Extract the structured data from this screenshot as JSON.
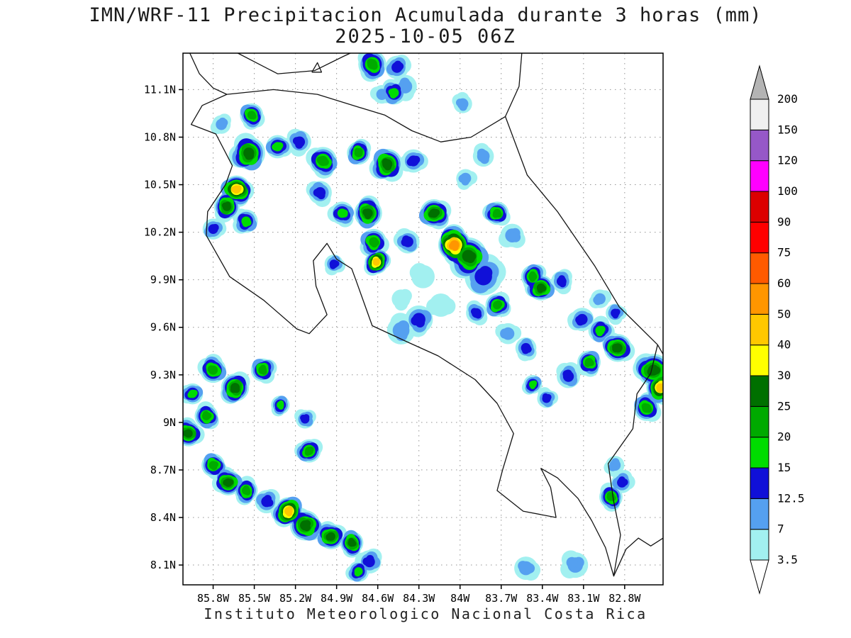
{
  "title": {
    "line1": "IMN/WRF-11 Precipitacion Acumulada durante 3 horas (mm)",
    "line2": "2025-10-05 06Z"
  },
  "footer": {
    "text": "Instituto Meteorologico Nacional Costa Rica"
  },
  "colorbar": {
    "levels": [
      3.5,
      7,
      12.5,
      15,
      20,
      25,
      30,
      40,
      50,
      60,
      75,
      90,
      100,
      120,
      150,
      200
    ],
    "labels": [
      "3.5",
      "7",
      "12.5",
      "15",
      "20",
      "25",
      "30",
      "40",
      "50",
      "60",
      "75",
      "90",
      "100",
      "120",
      "150",
      "200"
    ],
    "band_colors": [
      "#ffffff",
      "#a2f0f0",
      "#55a0f0",
      "#1010d8",
      "#00dc00",
      "#00aa00",
      "#007000",
      "#ffff00",
      "#ffc800",
      "#ff9600",
      "#ff5a00",
      "#ff0000",
      "#dc0000",
      "#ff00ff",
      "#9658c8",
      "#f0f0f0",
      "#b4b4b4"
    ]
  },
  "axes": {
    "lat_ticks": [
      {
        "value": 11.1,
        "label": "11.1N"
      },
      {
        "value": 10.8,
        "label": "10.8N"
      },
      {
        "value": 10.5,
        "label": "10.5N"
      },
      {
        "value": 10.2,
        "label": "10.2N"
      },
      {
        "value": 9.9,
        "label": "9.9N"
      },
      {
        "value": 9.6,
        "label": "9.6N"
      },
      {
        "value": 9.3,
        "label": "9.3N"
      },
      {
        "value": 9.0,
        "label": "9N"
      },
      {
        "value": 8.7,
        "label": "8.7N"
      },
      {
        "value": 8.4,
        "label": "8.4N"
      },
      {
        "value": 8.1,
        "label": "8.1N"
      }
    ],
    "lon_ticks": [
      {
        "value": -85.8,
        "label": "85.8W"
      },
      {
        "value": -85.5,
        "label": "85.5W"
      },
      {
        "value": -85.2,
        "label": "85.2W"
      },
      {
        "value": -84.9,
        "label": "84.9W"
      },
      {
        "value": -84.6,
        "label": "84.6W"
      },
      {
        "value": -84.3,
        "label": "84.3W"
      },
      {
        "value": -84.0,
        "label": "84W"
      },
      {
        "value": -83.7,
        "label": "83.7W"
      },
      {
        "value": -83.4,
        "label": "83.4W"
      },
      {
        "value": -83.1,
        "label": "83.1W"
      },
      {
        "value": -82.8,
        "label": "82.8W"
      }
    ]
  },
  "chart_data": {
    "type": "filled-contour-map",
    "model": "IMN/WRF-11",
    "variable": "Precipitacion Acumulada durante 3 horas",
    "units": "mm",
    "valid_time": "2025-10-05 06Z",
    "lon_range": [
      -86.02,
      -82.52
    ],
    "lat_range": [
      7.975,
      11.33
    ],
    "contour_levels": [
      3.5,
      7,
      12.5,
      15,
      20,
      25,
      30,
      40,
      50,
      60,
      75,
      90,
      100,
      120,
      150,
      200
    ],
    "cells": [
      [
        -84.64,
        11.26,
        20,
        0.06
      ],
      [
        -84.46,
        11.24,
        12.5,
        0.05
      ],
      [
        -84.4,
        11.12,
        7,
        0.05
      ],
      [
        -84.57,
        11.07,
        7,
        0.04
      ],
      [
        -84.48,
        11.08,
        15,
        0.05
      ],
      [
        -85.52,
        10.94,
        20,
        0.05
      ],
      [
        -85.74,
        10.88,
        7,
        0.04
      ],
      [
        -85.54,
        10.7,
        25,
        0.07
      ],
      [
        -85.33,
        10.74,
        15,
        0.05
      ],
      [
        -85.17,
        10.77,
        12.5,
        0.05
      ],
      [
        -85.0,
        10.65,
        20,
        0.06
      ],
      [
        -84.74,
        10.7,
        20,
        0.05
      ],
      [
        -84.53,
        10.63,
        25,
        0.065
      ],
      [
        -84.34,
        10.65,
        12.5,
        0.05
      ],
      [
        -83.98,
        11.01,
        7,
        0.04
      ],
      [
        -85.63,
        10.47,
        40,
        0.06
      ],
      [
        -85.7,
        10.36,
        25,
        0.055
      ],
      [
        -85.56,
        10.27,
        15,
        0.05
      ],
      [
        -85.8,
        10.22,
        12.5,
        0.045
      ],
      [
        -85.02,
        10.45,
        12.5,
        0.05
      ],
      [
        -84.86,
        10.32,
        15,
        0.05
      ],
      [
        -84.67,
        10.32,
        25,
        0.06
      ],
      [
        -84.63,
        10.14,
        20,
        0.055
      ],
      [
        -84.61,
        10.01,
        40,
        0.05
      ],
      [
        -84.38,
        10.14,
        12.5,
        0.05
      ],
      [
        -84.19,
        10.32,
        25,
        0.06
      ],
      [
        -84.04,
        10.12,
        50,
        0.07
      ],
      [
        -83.94,
        10.05,
        25,
        0.08
      ],
      [
        -83.83,
        9.92,
        12.5,
        0.08
      ],
      [
        -83.73,
        10.32,
        20,
        0.05
      ],
      [
        -83.62,
        10.18,
        7,
        0.05
      ],
      [
        -83.83,
        10.68,
        7,
        0.045
      ],
      [
        -83.96,
        10.54,
        7,
        0.04
      ],
      [
        -83.47,
        9.92,
        20,
        0.05
      ],
      [
        -83.41,
        9.85,
        25,
        0.055
      ],
      [
        -83.73,
        9.74,
        20,
        0.05
      ],
      [
        -83.88,
        9.69,
        12.5,
        0.045
      ],
      [
        -84.3,
        9.65,
        12.5,
        0.06
      ],
      [
        -84.43,
        9.58,
        7,
        0.06
      ],
      [
        -84.14,
        9.74,
        3.5,
        0.05
      ],
      [
        -84.92,
        10.0,
        12.5,
        0.04
      ],
      [
        -84.27,
        9.92,
        3.5,
        0.05
      ],
      [
        -84.43,
        9.78,
        3.5,
        0.04
      ],
      [
        -83.26,
        9.89,
        12.5,
        0.045
      ],
      [
        -83.11,
        9.65,
        12.5,
        0.05
      ],
      [
        -82.98,
        9.58,
        15,
        0.05
      ],
      [
        -82.85,
        9.47,
        25,
        0.06
      ],
      [
        -83.06,
        9.38,
        20,
        0.05
      ],
      [
        -83.21,
        9.29,
        12.5,
        0.05
      ],
      [
        -82.98,
        9.78,
        7,
        0.04
      ],
      [
        -82.87,
        9.69,
        12.5,
        0.04
      ],
      [
        -82.59,
        9.33,
        25,
        0.07
      ],
      [
        -82.54,
        9.22,
        40,
        0.06
      ],
      [
        -82.64,
        9.09,
        20,
        0.055
      ],
      [
        -83.47,
        9.24,
        15,
        0.04
      ],
      [
        -83.37,
        9.15,
        12.5,
        0.04
      ],
      [
        -83.65,
        9.56,
        7,
        0.045
      ],
      [
        -83.52,
        9.47,
        12.5,
        0.045
      ],
      [
        -85.8,
        9.33,
        20,
        0.055
      ],
      [
        -85.64,
        9.22,
        25,
        0.06
      ],
      [
        -85.44,
        9.33,
        20,
        0.05
      ],
      [
        -85.95,
        9.18,
        15,
        0.045
      ],
      [
        -85.85,
        9.04,
        20,
        0.05
      ],
      [
        -85.98,
        8.93,
        25,
        0.055
      ],
      [
        -85.31,
        9.11,
        15,
        0.04
      ],
      [
        -85.13,
        9.02,
        12.5,
        0.04
      ],
      [
        -85.1,
        8.82,
        20,
        0.05
      ],
      [
        -85.8,
        8.73,
        20,
        0.05
      ],
      [
        -85.69,
        8.62,
        25,
        0.055
      ],
      [
        -85.56,
        8.57,
        20,
        0.05
      ],
      [
        -85.41,
        8.5,
        12.5,
        0.05
      ],
      [
        -85.25,
        8.44,
        40,
        0.06
      ],
      [
        -85.13,
        8.35,
        25,
        0.065
      ],
      [
        -84.94,
        8.28,
        25,
        0.055
      ],
      [
        -84.79,
        8.24,
        25,
        0.05
      ],
      [
        -84.66,
        8.12,
        12.5,
        0.05
      ],
      [
        -84.74,
        8.06,
        15,
        0.045
      ],
      [
        -83.52,
        8.08,
        7,
        0.05
      ],
      [
        -83.16,
        8.1,
        7,
        0.055
      ],
      [
        -82.9,
        8.53,
        20,
        0.05
      ],
      [
        -82.82,
        8.62,
        12.5,
        0.045
      ],
      [
        -82.87,
        8.73,
        7,
        0.04
      ]
    ],
    "coastlines": {
      "costa_rica": [
        [
          -85.7,
          11.07
        ],
        [
          -85.88,
          11.0
        ],
        [
          -85.96,
          10.88
        ],
        [
          -85.78,
          10.82
        ],
        [
          -85.66,
          10.62
        ],
        [
          -85.71,
          10.5
        ],
        [
          -85.84,
          10.33
        ],
        [
          -85.85,
          10.18
        ],
        [
          -85.68,
          9.92
        ],
        [
          -85.43,
          9.77
        ],
        [
          -85.19,
          9.59
        ],
        [
          -85.1,
          9.56
        ],
        [
          -84.97,
          9.68
        ],
        [
          -85.05,
          9.86
        ],
        [
          -85.07,
          10.02
        ],
        [
          -84.97,
          10.13
        ],
        [
          -84.9,
          10.03
        ],
        [
          -84.79,
          9.97
        ],
        [
          -84.76,
          9.9
        ],
        [
          -84.64,
          9.61
        ],
        [
          -84.39,
          9.51
        ],
        [
          -84.16,
          9.42
        ],
        [
          -83.89,
          9.27
        ],
        [
          -83.73,
          9.12
        ],
        [
          -83.61,
          8.93
        ],
        [
          -83.69,
          8.7
        ],
        [
          -83.73,
          8.57
        ],
        [
          -83.54,
          8.44
        ],
        [
          -83.3,
          8.4
        ],
        [
          -83.34,
          8.59
        ],
        [
          -83.41,
          8.71
        ],
        [
          -83.29,
          8.65
        ],
        [
          -83.14,
          8.52
        ],
        [
          -83.04,
          8.38
        ],
        [
          -82.94,
          8.21
        ],
        [
          -82.88,
          8.03
        ],
        [
          -82.83,
          8.29
        ],
        [
          -82.88,
          8.5
        ],
        [
          -82.92,
          8.74
        ],
        [
          -82.74,
          8.96
        ],
        [
          -82.71,
          9.18
        ],
        [
          -82.61,
          9.31
        ],
        [
          -82.56,
          9.49
        ],
        [
          -82.84,
          9.73
        ],
        [
          -83.02,
          9.99
        ],
        [
          -83.29,
          10.33
        ],
        [
          -83.51,
          10.56
        ],
        [
          -83.67,
          10.93
        ],
        [
          -83.92,
          10.8
        ],
        [
          -84.14,
          10.77
        ],
        [
          -84.35,
          10.84
        ],
        [
          -84.55,
          10.94
        ],
        [
          -84.78,
          11.0
        ],
        [
          -85.04,
          11.07
        ],
        [
          -85.36,
          11.1
        ],
        [
          -85.7,
          11.07
        ]
      ],
      "nicaragua_pacific": [
        [
          -85.7,
          11.07
        ],
        [
          -85.8,
          11.11
        ],
        [
          -85.9,
          11.2
        ],
        [
          -85.97,
          11.33
        ]
      ],
      "nicaragua_caribbean": [
        [
          -83.67,
          10.93
        ],
        [
          -83.57,
          11.12
        ],
        [
          -83.55,
          11.33
        ]
      ],
      "lake_nicaragua_shore": [
        [
          -85.62,
          11.33
        ],
        [
          -85.33,
          11.2
        ],
        [
          -85.06,
          11.22
        ],
        [
          -84.85,
          11.31
        ],
        [
          -84.8,
          11.33
        ]
      ],
      "lake_island": [
        [
          -85.08,
          11.21
        ],
        [
          -85.01,
          11.21
        ],
        [
          -85.04,
          11.27
        ],
        [
          -85.08,
          11.21
        ]
      ],
      "panama_pacific": [
        [
          -82.88,
          8.03
        ],
        [
          -82.79,
          8.2
        ],
        [
          -82.7,
          8.27
        ],
        [
          -82.61,
          8.22
        ],
        [
          -82.52,
          8.27
        ]
      ],
      "panama_caribbean": [
        [
          -82.56,
          9.49
        ],
        [
          -82.52,
          9.43
        ]
      ]
    }
  }
}
